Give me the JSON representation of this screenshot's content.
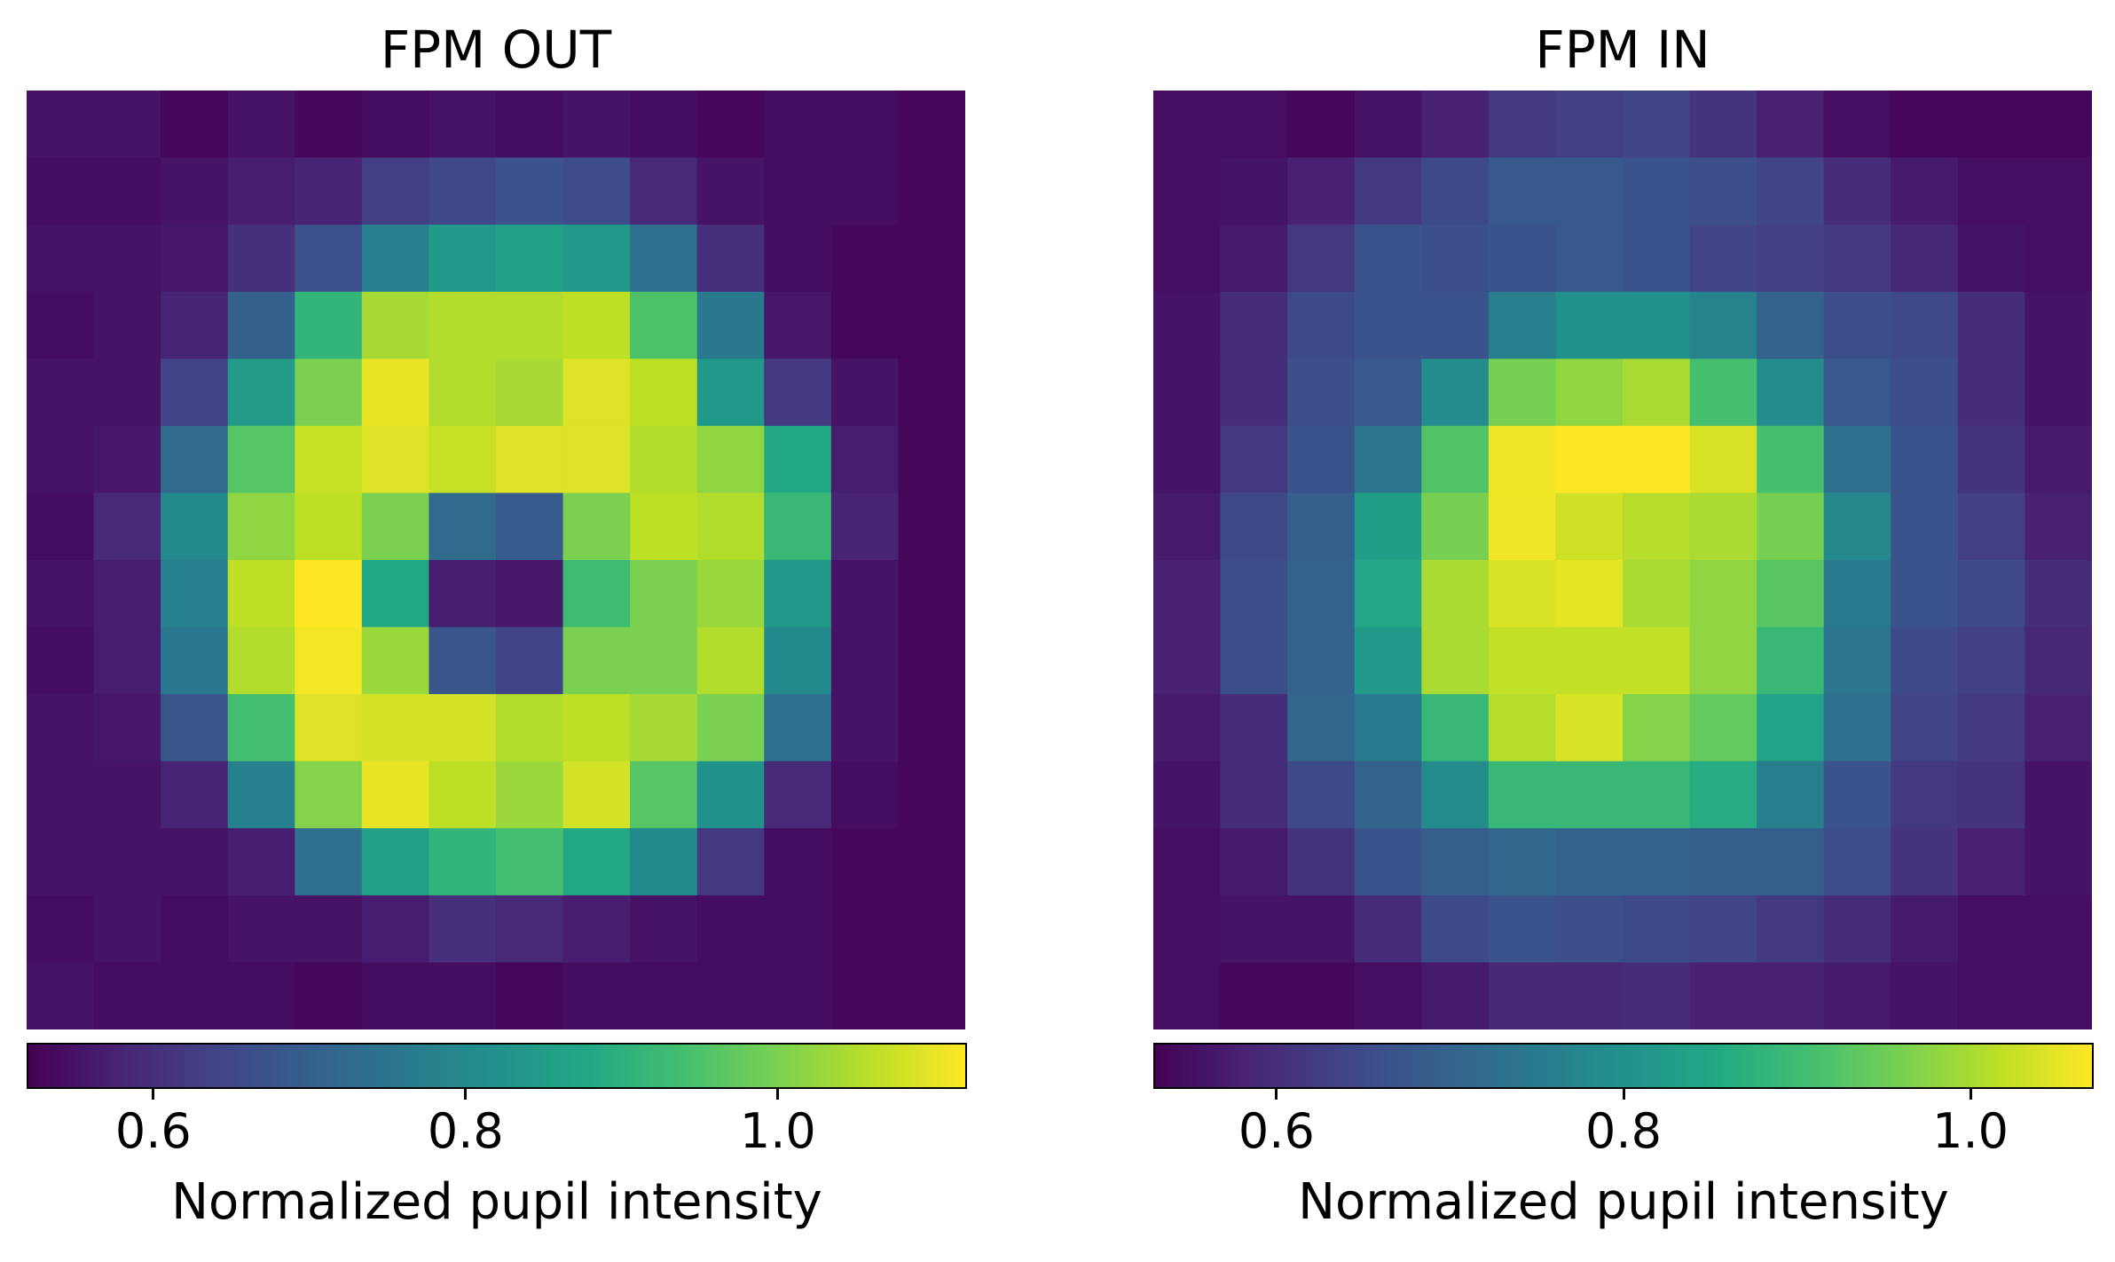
{
  "chart_data": [
    {
      "type": "heatmap",
      "title": "FPM OUT",
      "colorbar": {
        "label": "Normalized pupil intensity",
        "range": [
          0.52,
          1.12
        ],
        "ticks": [
          0.6,
          0.8,
          1.0
        ],
        "tick_labels": [
          "0.6",
          "0.8",
          "1.0"
        ],
        "colormap": "viridis"
      },
      "grid": [
        [
          0.55,
          0.55,
          0.53,
          0.55,
          0.53,
          0.54,
          0.55,
          0.54,
          0.55,
          0.54,
          0.53,
          0.54,
          0.54,
          0.53
        ],
        [
          0.54,
          0.54,
          0.55,
          0.57,
          0.58,
          0.63,
          0.65,
          0.67,
          0.66,
          0.59,
          0.55,
          0.54,
          0.54,
          0.53
        ],
        [
          0.55,
          0.55,
          0.56,
          0.6,
          0.67,
          0.78,
          0.84,
          0.86,
          0.84,
          0.74,
          0.6,
          0.54,
          0.53,
          0.53
        ],
        [
          0.54,
          0.55,
          0.58,
          0.7,
          0.91,
          1.04,
          1.05,
          1.05,
          1.06,
          0.95,
          0.76,
          0.56,
          0.53,
          0.53
        ],
        [
          0.55,
          0.55,
          0.64,
          0.85,
          1.0,
          1.1,
          1.05,
          1.04,
          1.09,
          1.06,
          0.84,
          0.62,
          0.55,
          0.53
        ],
        [
          0.55,
          0.56,
          0.73,
          0.96,
          1.07,
          1.09,
          1.07,
          1.09,
          1.09,
          1.05,
          1.02,
          0.88,
          0.57,
          0.53
        ],
        [
          0.54,
          0.59,
          0.8,
          1.02,
          1.06,
          1.0,
          0.73,
          0.69,
          1.0,
          1.06,
          1.05,
          0.92,
          0.58,
          0.53
        ],
        [
          0.55,
          0.57,
          0.78,
          1.06,
          1.12,
          0.88,
          0.57,
          0.56,
          0.93,
          1.0,
          1.03,
          0.84,
          0.55,
          0.53
        ],
        [
          0.54,
          0.57,
          0.76,
          1.05,
          1.11,
          1.03,
          0.68,
          0.64,
          1.0,
          1.0,
          1.05,
          0.8,
          0.55,
          0.53
        ],
        [
          0.55,
          0.56,
          0.68,
          0.94,
          1.09,
          1.08,
          1.08,
          1.05,
          1.06,
          1.04,
          1.0,
          0.74,
          0.55,
          0.53
        ],
        [
          0.55,
          0.55,
          0.58,
          0.78,
          1.01,
          1.1,
          1.06,
          1.03,
          1.08,
          0.96,
          0.82,
          0.59,
          0.54,
          0.53
        ],
        [
          0.55,
          0.55,
          0.55,
          0.57,
          0.74,
          0.86,
          0.91,
          0.94,
          0.88,
          0.8,
          0.62,
          0.54,
          0.53,
          0.53
        ],
        [
          0.54,
          0.55,
          0.54,
          0.55,
          0.55,
          0.57,
          0.6,
          0.59,
          0.57,
          0.55,
          0.54,
          0.54,
          0.53,
          0.53
        ],
        [
          0.55,
          0.54,
          0.54,
          0.54,
          0.53,
          0.54,
          0.54,
          0.53,
          0.54,
          0.54,
          0.54,
          0.54,
          0.53,
          0.53
        ]
      ]
    },
    {
      "type": "heatmap",
      "title": "FPM IN",
      "colorbar": {
        "label": "Normalized pupil intensity",
        "range": [
          0.53,
          1.07
        ],
        "ticks": [
          0.6,
          0.8,
          1.0
        ],
        "tick_labels": [
          "0.6",
          "0.8",
          "1.0"
        ],
        "colormap": "viridis"
      },
      "grid": [
        [
          0.55,
          0.55,
          0.54,
          0.56,
          0.58,
          0.62,
          0.63,
          0.64,
          0.61,
          0.58,
          0.55,
          0.54,
          0.54,
          0.54
        ],
        [
          0.55,
          0.56,
          0.58,
          0.62,
          0.65,
          0.68,
          0.68,
          0.67,
          0.66,
          0.64,
          0.6,
          0.57,
          0.55,
          0.55
        ],
        [
          0.55,
          0.57,
          0.62,
          0.67,
          0.66,
          0.67,
          0.68,
          0.67,
          0.64,
          0.63,
          0.62,
          0.59,
          0.56,
          0.55
        ],
        [
          0.56,
          0.6,
          0.65,
          0.67,
          0.67,
          0.76,
          0.8,
          0.8,
          0.77,
          0.7,
          0.66,
          0.65,
          0.6,
          0.56
        ],
        [
          0.56,
          0.6,
          0.66,
          0.68,
          0.79,
          0.96,
          0.98,
          1.0,
          0.91,
          0.79,
          0.68,
          0.66,
          0.6,
          0.56
        ],
        [
          0.56,
          0.62,
          0.67,
          0.74,
          0.92,
          1.06,
          1.07,
          1.07,
          1.04,
          0.91,
          0.73,
          0.67,
          0.61,
          0.57
        ],
        [
          0.57,
          0.65,
          0.69,
          0.83,
          0.96,
          1.06,
          1.03,
          1.01,
          1.0,
          0.96,
          0.78,
          0.67,
          0.63,
          0.58
        ],
        [
          0.58,
          0.66,
          0.7,
          0.85,
          1.0,
          1.04,
          1.05,
          1.0,
          0.98,
          0.93,
          0.75,
          0.67,
          0.65,
          0.6
        ],
        [
          0.58,
          0.66,
          0.7,
          0.82,
          1.0,
          1.02,
          1.02,
          1.02,
          0.98,
          0.89,
          0.74,
          0.65,
          0.63,
          0.59
        ],
        [
          0.57,
          0.6,
          0.71,
          0.75,
          0.89,
          1.01,
          1.04,
          0.97,
          0.94,
          0.84,
          0.73,
          0.64,
          0.62,
          0.58
        ],
        [
          0.56,
          0.6,
          0.65,
          0.7,
          0.79,
          0.89,
          0.89,
          0.89,
          0.86,
          0.76,
          0.67,
          0.62,
          0.61,
          0.56
        ],
        [
          0.55,
          0.57,
          0.61,
          0.67,
          0.69,
          0.71,
          0.7,
          0.7,
          0.69,
          0.69,
          0.66,
          0.61,
          0.58,
          0.56
        ],
        [
          0.55,
          0.56,
          0.56,
          0.6,
          0.65,
          0.67,
          0.66,
          0.65,
          0.64,
          0.62,
          0.6,
          0.57,
          0.55,
          0.55
        ],
        [
          0.55,
          0.54,
          0.54,
          0.55,
          0.57,
          0.59,
          0.59,
          0.6,
          0.58,
          0.58,
          0.57,
          0.56,
          0.55,
          0.55
        ]
      ]
    }
  ]
}
